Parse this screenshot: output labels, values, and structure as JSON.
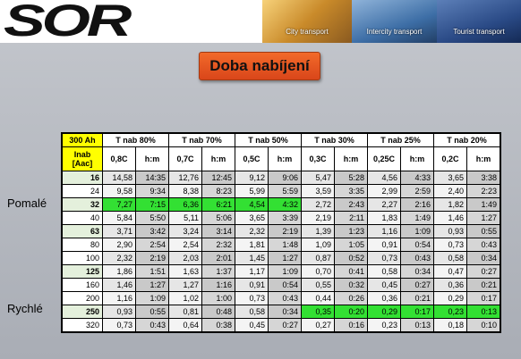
{
  "header": {
    "logo": "SOR",
    "photos": [
      "City transport",
      "Intercity transport",
      "Tourist transport"
    ]
  },
  "title": "Doba nabíjení",
  "side_labels": [
    "Pomalé",
    "Rychlé"
  ],
  "table": {
    "corner": "300 Ah",
    "groups": [
      "T nab 80%",
      "T nab 70%",
      "T nab 50%",
      "T nab 30%",
      "T nab 25%",
      "T nab 20%"
    ],
    "subheader": [
      "Inab [Aac]",
      "0,8C",
      "h:m",
      "0,7C",
      "h:m",
      "0,5C",
      "h:m",
      "0,3C",
      "h:m",
      "0,25C",
      "h:m",
      "0,2C",
      "h:m"
    ],
    "rows": [
      [
        "16",
        "14,58",
        "14:35",
        "12,76",
        "12:45",
        "9,12",
        "9:06",
        "5,47",
        "5:28",
        "4,56",
        "4:33",
        "3,65",
        "3:38"
      ],
      [
        "24",
        "9,58",
        "9:34",
        "8,38",
        "8:23",
        "5,99",
        "5:59",
        "3,59",
        "3:35",
        "2,99",
        "2:59",
        "2,40",
        "2:23"
      ],
      [
        "32",
        "7,27",
        "7:15",
        "6,36",
        "6:21",
        "4,54",
        "4:32",
        "2,72",
        "2:43",
        "2,27",
        "2:16",
        "1,82",
        "1:49"
      ],
      [
        "40",
        "5,84",
        "5:50",
        "5,11",
        "5:06",
        "3,65",
        "3:39",
        "2,19",
        "2:11",
        "1,83",
        "1:49",
        "1,46",
        "1:27"
      ],
      [
        "63",
        "3,71",
        "3:42",
        "3,24",
        "3:14",
        "2,32",
        "2:19",
        "1,39",
        "1:23",
        "1,16",
        "1:09",
        "0,93",
        "0:55"
      ],
      [
        "80",
        "2,90",
        "2:54",
        "2,54",
        "2:32",
        "1,81",
        "1:48",
        "1,09",
        "1:05",
        "0,91",
        "0:54",
        "0,73",
        "0:43"
      ],
      [
        "100",
        "2,32",
        "2:19",
        "2,03",
        "2:01",
        "1,45",
        "1:27",
        "0,87",
        "0:52",
        "0,73",
        "0:43",
        "0,58",
        "0:34"
      ],
      [
        "125",
        "1,86",
        "1:51",
        "1,63",
        "1:37",
        "1,17",
        "1:09",
        "0,70",
        "0:41",
        "0,58",
        "0:34",
        "0,47",
        "0:27"
      ],
      [
        "160",
        "1,46",
        "1:27",
        "1,27",
        "1:16",
        "0,91",
        "0:54",
        "0,55",
        "0:32",
        "0,45",
        "0:27",
        "0,36",
        "0:21"
      ],
      [
        "200",
        "1,16",
        "1:09",
        "1,02",
        "1:00",
        "0,73",
        "0:43",
        "0,44",
        "0:26",
        "0,36",
        "0:21",
        "0,29",
        "0:17"
      ],
      [
        "250",
        "0,93",
        "0:55",
        "0,81",
        "0:48",
        "0,58",
        "0:34",
        "0,35",
        "0:20",
        "0,29",
        "0:17",
        "0,23",
        "0:13"
      ],
      [
        "320",
        "0,73",
        "0:43",
        "0,64",
        "0:38",
        "0,45",
        "0:27",
        "0,27",
        "0:16",
        "0,23",
        "0:13",
        "0,18",
        "0:10"
      ]
    ]
  }
}
